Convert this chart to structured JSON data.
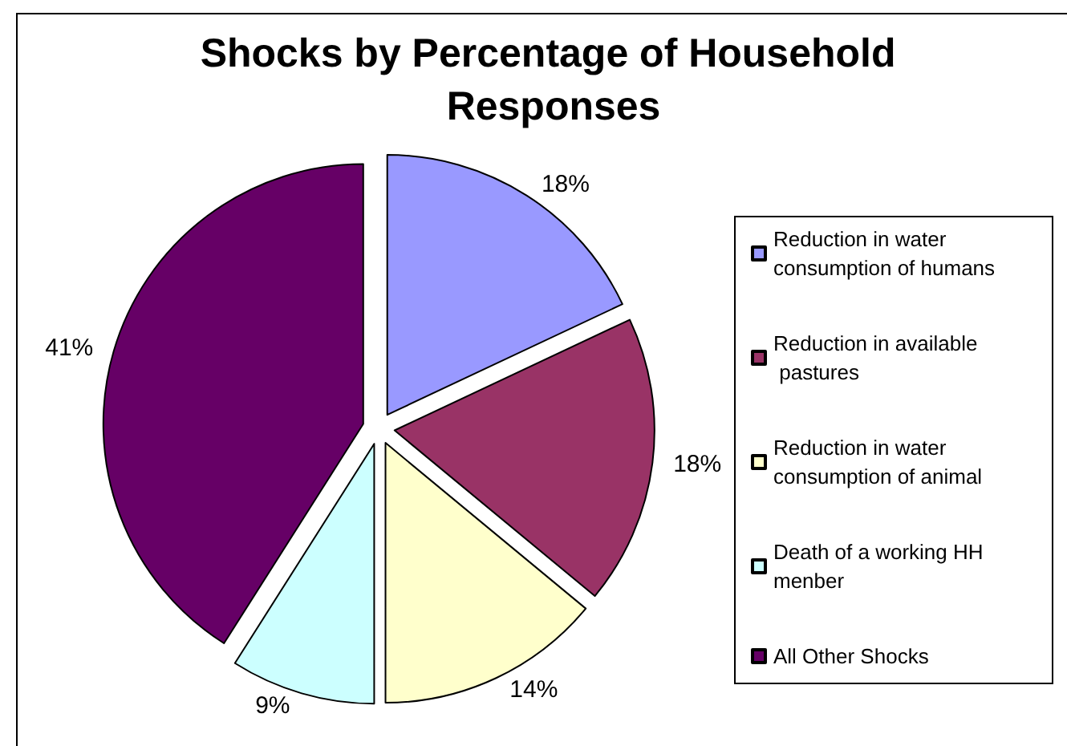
{
  "chart_data": {
    "type": "pie",
    "title": "Shocks by Percentage of Household Responses",
    "categories": [
      "Reduction in water consumption of humans",
      "Reduction in available pastures",
      "Reduction in water consumption of animal",
      "Death of a working HH menber",
      "All Other Shocks"
    ],
    "values": [
      18,
      18,
      14,
      9,
      41
    ],
    "colors": [
      "#9999ff",
      "#993366",
      "#ffffcc",
      "#ccffff",
      "#660066"
    ],
    "value_labels": [
      "18%",
      "18%",
      "14%",
      "9%",
      "41%"
    ],
    "legend": "right"
  }
}
